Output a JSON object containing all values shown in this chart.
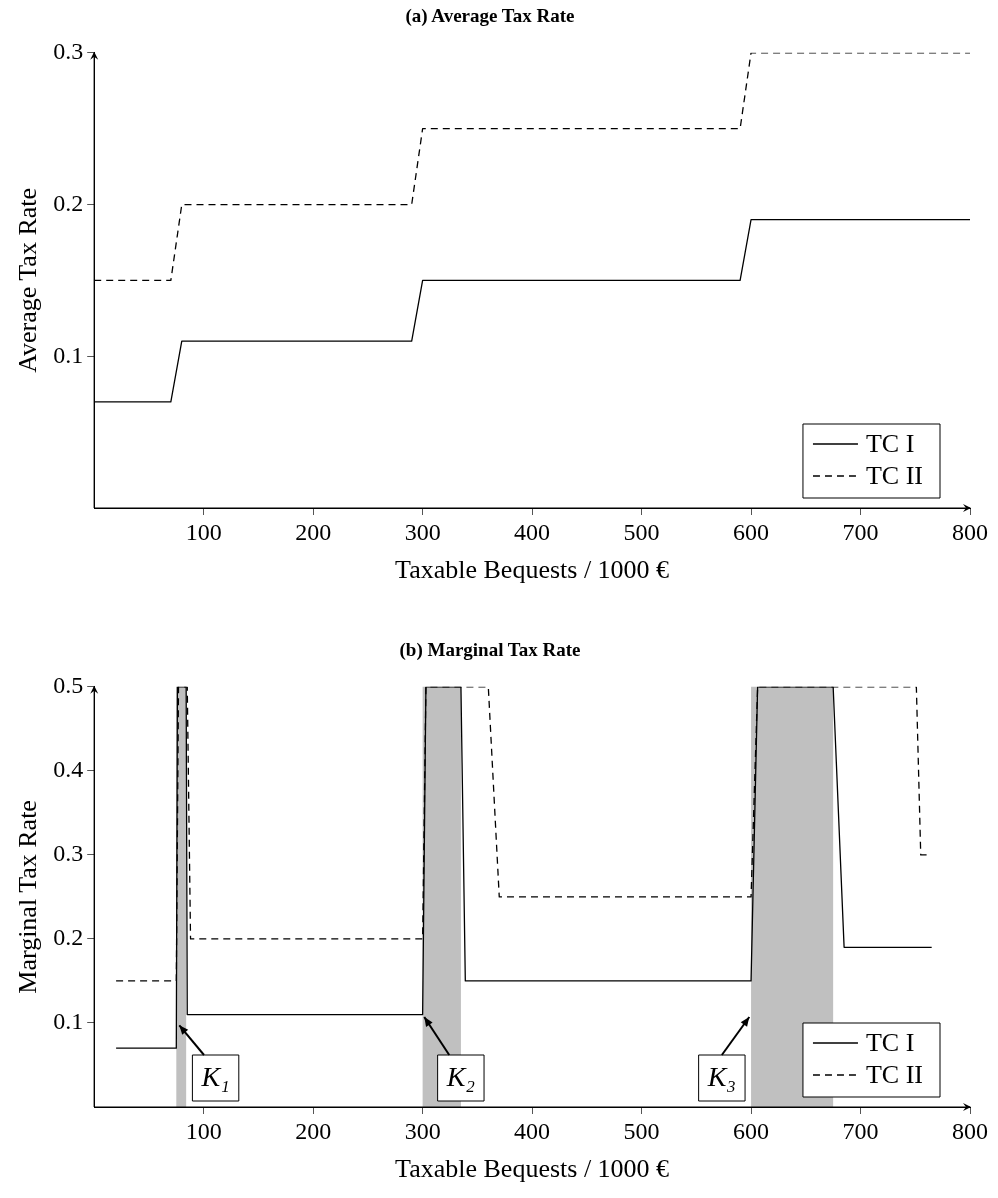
{
  "chart_data": [
    {
      "type": "line",
      "title": "(a) Average Tax Rate",
      "xlabel": "Taxable Bequests / 1000 €",
      "ylabel": "Average Tax Rate",
      "xlim": [
        0,
        800
      ],
      "xticks": [
        100,
        200,
        300,
        400,
        500,
        600,
        700,
        800
      ],
      "ylim": [
        0,
        0.3
      ],
      "yticks": [
        0.1,
        0.2,
        0.3
      ],
      "grid": false,
      "legend": "bottom right",
      "marker": "none",
      "series": [
        {
          "name": "TC I",
          "color": "#000000",
          "line_style": "solid",
          "x": [
            0,
            70,
            80,
            290,
            300,
            590,
            600,
            800
          ],
          "values": [
            0.07,
            0.07,
            0.11,
            0.11,
            0.15,
            0.15,
            0.19,
            0.19
          ]
        },
        {
          "name": "TC II",
          "color": "#000000",
          "line_style": "dashed",
          "x": [
            0,
            70,
            80,
            290,
            300,
            590,
            600,
            800
          ],
          "values": [
            0.15,
            0.15,
            0.2,
            0.2,
            0.25,
            0.25,
            0.3,
            0.3
          ]
        }
      ]
    },
    {
      "type": "line",
      "title": "(b) Marginal Tax Rate",
      "xlabel": "Taxable Bequests / 1000 €",
      "ylabel": "Marginal Tax Rate",
      "xlim": [
        0,
        800
      ],
      "xticks": [
        100,
        200,
        300,
        400,
        500,
        600,
        700,
        800
      ],
      "ylim": [
        0,
        0.5
      ],
      "yticks": [
        0.1,
        0.2,
        0.3,
        0.4,
        0.5
      ],
      "grid": false,
      "legend": "bottom right",
      "marker": "none",
      "series": [
        {
          "name": "TC I",
          "color": "#000000",
          "line_style": "solid",
          "x": [
            20,
            75,
            76,
            84,
            85,
            300,
            303,
            335,
            339,
            600,
            606,
            675,
            685,
            765
          ],
          "values": [
            0.07,
            0.07,
            0.5,
            0.5,
            0.11,
            0.11,
            0.5,
            0.5,
            0.15,
            0.15,
            0.5,
            0.5,
            0.19,
            0.19
          ]
        },
        {
          "name": "TC II",
          "color": "#000000",
          "line_style": "dashed",
          "x": [
            20,
            75,
            77,
            85,
            88,
            300,
            303,
            360,
            370,
            600,
            606,
            751,
            755,
            762
          ],
          "values": [
            0.15,
            0.15,
            0.5,
            0.5,
            0.2,
            0.2,
            0.5,
            0.5,
            0.25,
            0.25,
            0.5,
            0.5,
            0.3,
            0.3
          ]
        }
      ],
      "bands": [
        {
          "axis": "x",
          "from": 75,
          "to": 84,
          "color": "#c0c0c0"
        },
        {
          "axis": "x",
          "from": 300,
          "to": 335,
          "color": "#c0c0c0"
        },
        {
          "axis": "x",
          "from": 600,
          "to": 675,
          "color": "#c0c0c0"
        }
      ],
      "annotations": [
        {
          "text": "K₁",
          "x": 76,
          "y": 0.1
        },
        {
          "text": "K₂",
          "x": 300,
          "y": 0.11
        },
        {
          "text": "K₃",
          "x": 600,
          "y": 0.11
        }
      ]
    }
  ]
}
